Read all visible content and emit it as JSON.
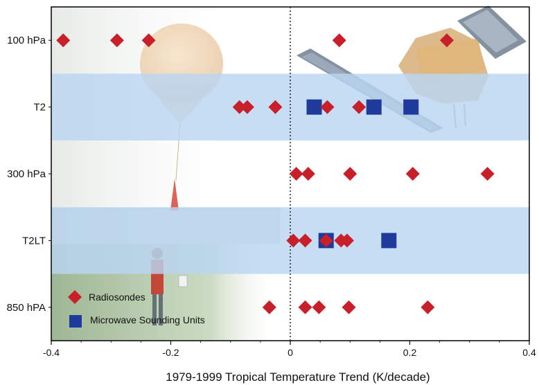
{
  "chart_data": {
    "type": "scatter",
    "categories": [
      "100 hPa",
      "T2",
      "300 hPa",
      "T2LT",
      "850 hPA"
    ],
    "shaded_categories": [
      "T2",
      "T2LT"
    ],
    "xlabel": "1979-1999 Tropical Temperature Trend (K/decade)",
    "xlim": [
      -0.4,
      0.4
    ],
    "x_ticks": [
      "-0.4",
      "-0.2",
      "0",
      "0.2",
      "0.4"
    ],
    "zero_line": "dotted",
    "legend_position": "bottom-left",
    "series": [
      {
        "name": "Radiosondes",
        "marker": "diamond",
        "color": "#c8202a",
        "points": [
          {
            "category": "100 hPa",
            "x": -0.38
          },
          {
            "category": "100 hPa",
            "x": -0.29
          },
          {
            "category": "100 hPa",
            "x": -0.237
          },
          {
            "category": "100 hPa",
            "x": 0.082
          },
          {
            "category": "100 hPa",
            "x": 0.262
          },
          {
            "category": "T2",
            "x": -0.085
          },
          {
            "category": "T2",
            "x": -0.072
          },
          {
            "category": "T2",
            "x": -0.025
          },
          {
            "category": "T2",
            "x": 0.062
          },
          {
            "category": "T2",
            "x": 0.115
          },
          {
            "category": "300 hPa",
            "x": 0.01
          },
          {
            "category": "300 hPa",
            "x": 0.03
          },
          {
            "category": "300 hPa",
            "x": 0.1
          },
          {
            "category": "300 hPa",
            "x": 0.205
          },
          {
            "category": "300 hPa",
            "x": 0.33
          },
          {
            "category": "T2LT",
            "x": 0.005
          },
          {
            "category": "T2LT",
            "x": 0.025
          },
          {
            "category": "T2LT",
            "x": 0.06
          },
          {
            "category": "T2LT",
            "x": 0.085
          },
          {
            "category": "T2LT",
            "x": 0.095
          },
          {
            "category": "850 hPA",
            "x": -0.035
          },
          {
            "category": "850 hPA",
            "x": 0.025
          },
          {
            "category": "850 hPA",
            "x": 0.048
          },
          {
            "category": "850 hPA",
            "x": 0.098
          },
          {
            "category": "850 hPA",
            "x": 0.23
          }
        ]
      },
      {
        "name": "Microwave Sounding Units",
        "marker": "square",
        "color": "#1e3a9a",
        "points": [
          {
            "category": "T2",
            "x": 0.04
          },
          {
            "category": "T2",
            "x": 0.14
          },
          {
            "category": "T2",
            "x": 0.202
          },
          {
            "category": "T2LT",
            "x": 0.06
          },
          {
            "category": "T2LT",
            "x": 0.165
          }
        ]
      }
    ]
  },
  "colors": {
    "band": "#b9d6f2",
    "axis": "#000000"
  },
  "background_elements": [
    "weather-balloon-photo",
    "satellite-image"
  ]
}
